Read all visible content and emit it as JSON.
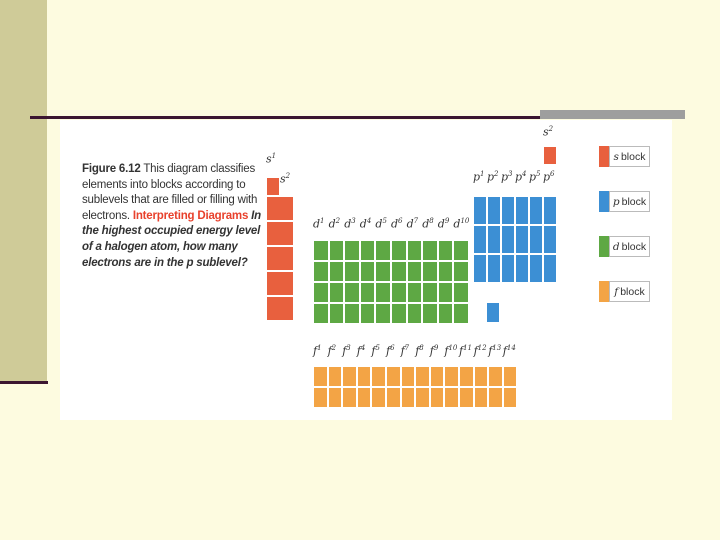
{
  "figure": {
    "caption": {
      "label": "Figure 6.12",
      "text": " This diagram classifies elements into blocks according to sublevels that are filled or filling with electrons.",
      "interp_label": "Interpreting Diagrams",
      "question": " In the highest occupied energy level of a halogen atom, how many electrons are in the p sublevel?"
    },
    "blocks": {
      "s": {
        "letter": "s",
        "columns": 2,
        "color": "#e8603e"
      },
      "p": {
        "letter": "p",
        "columns": 6,
        "color": "#3c8fd4"
      },
      "d": {
        "letter": "d",
        "columns": 10,
        "color": "#5ea844"
      },
      "f": {
        "letter": "f",
        "columns": 14,
        "color": "#f3a445"
      }
    },
    "legend": [
      {
        "letter": "s",
        "word": "block",
        "color": "#e8603e"
      },
      {
        "letter": "p",
        "word": "block",
        "color": "#3c8fd4"
      },
      {
        "letter": "d",
        "word": "block",
        "color": "#5ea844"
      },
      {
        "letter": "f",
        "word": "block",
        "color": "#f3a445"
      }
    ]
  }
}
